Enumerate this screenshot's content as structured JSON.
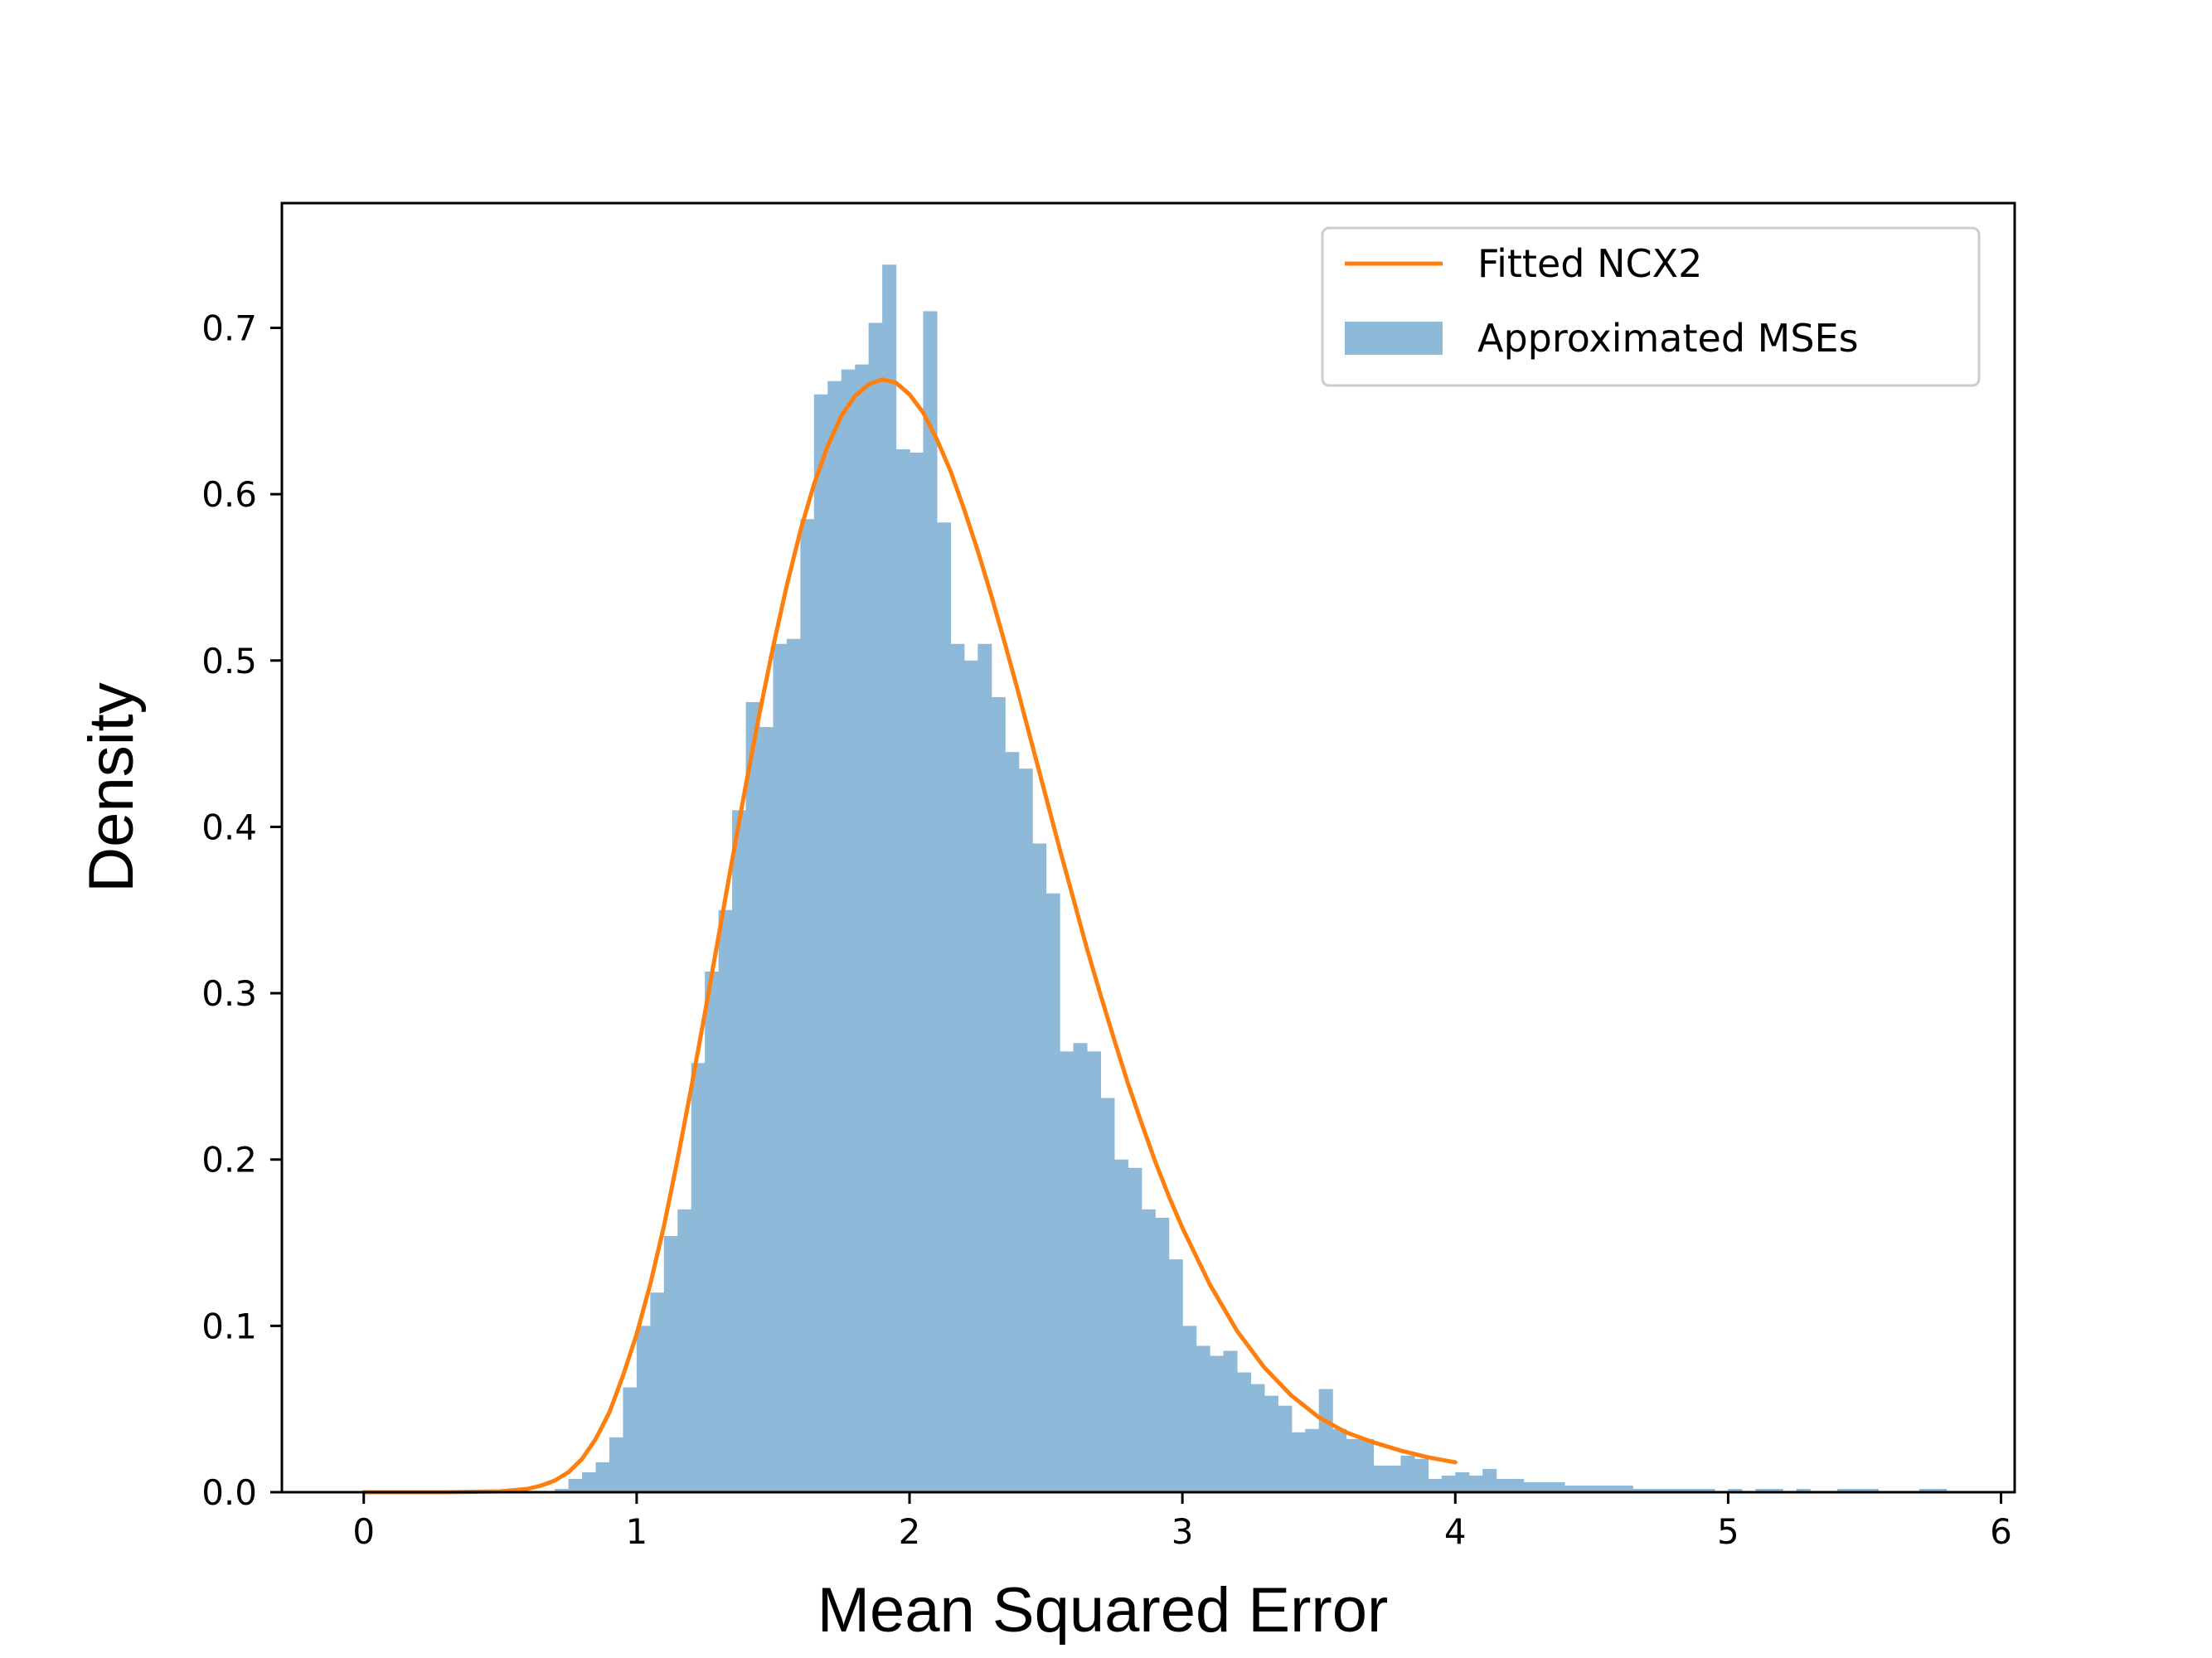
{
  "chart_data": {
    "type": "bar",
    "xlabel": "Mean Squared Error",
    "ylabel": "Density",
    "xlim": [
      -0.3,
      6.05
    ],
    "ylim": [
      0,
      0.775
    ],
    "x_ticks": [
      0,
      1,
      2,
      3,
      4,
      5,
      6
    ],
    "x_tick_labels": [
      "0",
      "1",
      "2",
      "3",
      "4",
      "5",
      "6"
    ],
    "y_ticks": [
      0.0,
      0.1,
      0.2,
      0.3,
      0.4,
      0.5,
      0.6,
      0.7
    ],
    "y_tick_labels": [
      "0.0",
      "0.1",
      "0.2",
      "0.3",
      "0.4",
      "0.5",
      "0.6",
      "0.7"
    ],
    "grid": false,
    "legend_position": "top-right",
    "legend": [
      "Fitted NCX2",
      "Approximated MSEs"
    ],
    "series": [
      {
        "name": "Approximated MSEs",
        "type": "histogram",
        "color": "#8fb9d9",
        "bin_width": 0.05,
        "bins": [
          [
            0.7,
            0.002
          ],
          [
            0.75,
            0.008
          ],
          [
            0.8,
            0.012
          ],
          [
            0.85,
            0.018
          ],
          [
            0.9,
            0.033
          ],
          [
            0.95,
            0.063
          ],
          [
            1.0,
            0.1
          ],
          [
            1.05,
            0.12
          ],
          [
            1.1,
            0.154
          ],
          [
            1.15,
            0.17
          ],
          [
            1.2,
            0.258
          ],
          [
            1.25,
            0.313
          ],
          [
            1.3,
            0.35
          ],
          [
            1.35,
            0.41
          ],
          [
            1.4,
            0.475
          ],
          [
            1.45,
            0.46
          ],
          [
            1.5,
            0.51
          ],
          [
            1.55,
            0.513
          ],
          [
            1.6,
            0.585
          ],
          [
            1.65,
            0.66
          ],
          [
            1.7,
            0.668
          ],
          [
            1.75,
            0.675
          ],
          [
            1.8,
            0.678
          ],
          [
            1.85,
            0.703
          ],
          [
            1.9,
            0.738
          ],
          [
            1.95,
            0.627
          ],
          [
            2.0,
            0.625
          ],
          [
            2.05,
            0.71
          ],
          [
            2.1,
            0.583
          ],
          [
            2.15,
            0.51
          ],
          [
            2.2,
            0.5
          ],
          [
            2.25,
            0.51
          ],
          [
            2.3,
            0.478
          ],
          [
            2.35,
            0.445
          ],
          [
            2.4,
            0.435
          ],
          [
            2.45,
            0.39
          ],
          [
            2.5,
            0.36
          ],
          [
            2.55,
            0.265
          ],
          [
            2.6,
            0.27
          ],
          [
            2.65,
            0.265
          ],
          [
            2.7,
            0.237
          ],
          [
            2.75,
            0.2
          ],
          [
            2.8,
            0.195
          ],
          [
            2.85,
            0.17
          ],
          [
            2.9,
            0.165
          ],
          [
            2.95,
            0.14
          ],
          [
            3.0,
            0.1
          ],
          [
            3.05,
            0.088
          ],
          [
            3.1,
            0.082
          ],
          [
            3.15,
            0.085
          ],
          [
            3.2,
            0.072
          ],
          [
            3.25,
            0.065
          ],
          [
            3.3,
            0.058
          ],
          [
            3.35,
            0.052
          ],
          [
            3.4,
            0.036
          ],
          [
            3.45,
            0.038
          ],
          [
            3.5,
            0.062
          ],
          [
            3.55,
            0.038
          ],
          [
            3.6,
            0.032
          ],
          [
            3.65,
            0.032
          ],
          [
            3.7,
            0.016
          ],
          [
            3.75,
            0.016
          ],
          [
            3.8,
            0.022
          ],
          [
            3.85,
            0.02
          ],
          [
            3.9,
            0.008
          ],
          [
            3.95,
            0.01
          ],
          [
            4.0,
            0.012
          ],
          [
            4.05,
            0.01
          ],
          [
            4.1,
            0.014
          ],
          [
            4.15,
            0.008
          ],
          [
            4.2,
            0.008
          ],
          [
            4.25,
            0.006
          ],
          [
            4.3,
            0.006
          ],
          [
            4.35,
            0.006
          ],
          [
            4.4,
            0.004
          ],
          [
            4.45,
            0.004
          ],
          [
            4.5,
            0.004
          ],
          [
            4.55,
            0.004
          ],
          [
            4.6,
            0.004
          ],
          [
            4.65,
            0.002
          ],
          [
            4.7,
            0.002
          ],
          [
            4.75,
            0.002
          ],
          [
            4.8,
            0.002
          ],
          [
            4.85,
            0.002
          ],
          [
            4.9,
            0.002
          ],
          [
            5.0,
            0.002
          ],
          [
            5.1,
            0.002
          ],
          [
            5.15,
            0.002
          ],
          [
            5.25,
            0.002
          ],
          [
            5.4,
            0.002
          ],
          [
            5.45,
            0.002
          ],
          [
            5.5,
            0.002
          ],
          [
            5.7,
            0.002
          ],
          [
            5.75,
            0.002
          ]
        ]
      },
      {
        "name": "Fitted NCX2",
        "type": "line",
        "color": "#ff7f0e",
        "x": [
          0.0,
          0.3,
          0.5,
          0.6,
          0.65,
          0.7,
          0.75,
          0.8,
          0.85,
          0.9,
          0.95,
          1.0,
          1.05,
          1.1,
          1.15,
          1.2,
          1.25,
          1.3,
          1.35,
          1.4,
          1.45,
          1.5,
          1.55,
          1.6,
          1.65,
          1.7,
          1.75,
          1.8,
          1.85,
          1.9,
          1.95,
          2.0,
          2.05,
          2.1,
          2.15,
          2.2,
          2.25,
          2.3,
          2.35,
          2.4,
          2.45,
          2.5,
          2.55,
          2.6,
          2.65,
          2.7,
          2.75,
          2.8,
          2.85,
          2.9,
          2.95,
          3.0,
          3.1,
          3.2,
          3.3,
          3.4,
          3.5,
          3.6,
          3.7,
          3.8,
          3.9,
          4.0
        ],
        "y": [
          0.0,
          0.0,
          0.0005,
          0.002,
          0.004,
          0.007,
          0.012,
          0.02,
          0.032,
          0.048,
          0.07,
          0.095,
          0.125,
          0.16,
          0.2,
          0.243,
          0.288,
          0.334,
          0.38,
          0.425,
          0.468,
          0.508,
          0.545,
          0.578,
          0.606,
          0.629,
          0.647,
          0.659,
          0.666,
          0.669,
          0.667,
          0.66,
          0.649,
          0.633,
          0.614,
          0.591,
          0.566,
          0.539,
          0.51,
          0.48,
          0.449,
          0.418,
          0.387,
          0.357,
          0.327,
          0.299,
          0.272,
          0.246,
          0.222,
          0.199,
          0.178,
          0.159,
          0.125,
          0.097,
          0.075,
          0.058,
          0.045,
          0.036,
          0.03,
          0.025,
          0.021,
          0.018
        ]
      }
    ]
  }
}
